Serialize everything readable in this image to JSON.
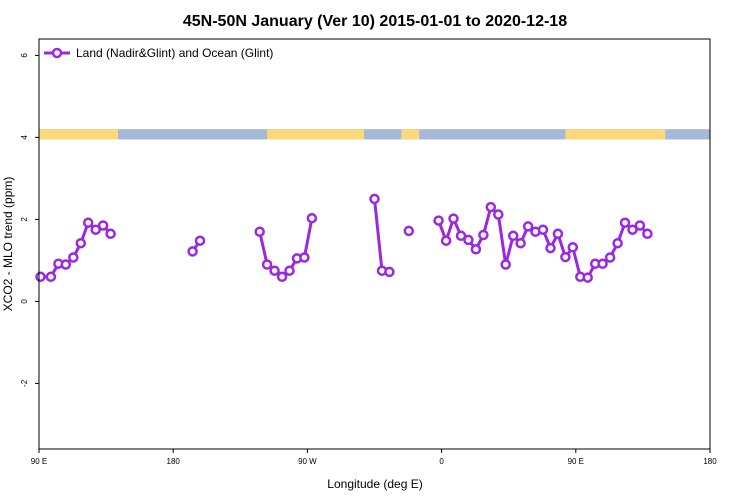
{
  "chart_data": {
    "type": "line",
    "title": "45N-50N January (Ver 10)   2015-01-01 to 2020-12-18",
    "xlabel": "Longitude (deg E)",
    "ylabel": "XCO2 - MLO trend (ppm)",
    "x_axis": {
      "range": [
        90,
        540
      ],
      "ticks": [
        {
          "value": 90,
          "label": "90 E"
        },
        {
          "value": 180,
          "label": "180"
        },
        {
          "value": 270,
          "label": "90 W"
        },
        {
          "value": 360,
          "label": "0"
        },
        {
          "value": 450,
          "label": "90 E"
        },
        {
          "value": 540,
          "label": "180"
        }
      ]
    },
    "y_axis": {
      "range": [
        -3.6,
        6.4
      ],
      "ticks": [
        {
          "value": -2,
          "label": "-2"
        },
        {
          "value": 0,
          "label": "0"
        },
        {
          "value": 2,
          "label": "2"
        },
        {
          "value": 4,
          "label": "4"
        },
        {
          "value": 6,
          "label": "6"
        }
      ]
    },
    "grid": false,
    "legend_position": "top-left",
    "land_ocean_band": {
      "y_range": [
        3.95,
        4.2
      ],
      "land_color": "#fbd87a",
      "ocean_color": "#a5b8d7",
      "land_segments": [
        [
          90,
          143
        ],
        [
          243,
          308
        ],
        [
          333,
          345
        ],
        [
          443,
          510
        ]
      ]
    },
    "series": [
      {
        "name": "Land (Nadir&Glint) and Ocean (Glint)",
        "color": "#9c27e0",
        "segments": [
          [
            [
              91,
              0.6
            ],
            [
              98,
              0.6
            ],
            [
              103,
              0.92
            ],
            [
              108,
              0.9
            ],
            [
              113,
              1.07
            ],
            [
              118,
              1.42
            ],
            [
              123,
              1.92
            ],
            [
              128,
              1.75
            ],
            [
              133,
              1.85
            ],
            [
              138,
              1.65
            ]
          ],
          [
            [
              193,
              1.22
            ],
            [
              198,
              1.48
            ]
          ],
          [
            [
              238,
              1.7
            ],
            [
              243,
              0.9
            ],
            [
              248,
              0.75
            ],
            [
              253,
              0.6
            ],
            [
              258,
              0.75
            ],
            [
              263,
              1.05
            ],
            [
              268,
              1.07
            ],
            [
              273,
              2.03
            ]
          ],
          [
            [
              315,
              2.5
            ],
            [
              320,
              0.75
            ],
            [
              325,
              0.72
            ]
          ],
          [
            [
              338,
              1.72
            ]
          ],
          [
            [
              358,
              1.97
            ],
            [
              363,
              1.48
            ],
            [
              368,
              2.02
            ],
            [
              373,
              1.6
            ],
            [
              378,
              1.5
            ],
            [
              383,
              1.27
            ],
            [
              388,
              1.62
            ],
            [
              393,
              2.3
            ],
            [
              398,
              2.12
            ],
            [
              403,
              0.9
            ],
            [
              408,
              1.6
            ],
            [
              413,
              1.42
            ],
            [
              418,
              1.83
            ],
            [
              423,
              1.7
            ],
            [
              428,
              1.75
            ],
            [
              433,
              1.3
            ],
            [
              438,
              1.65
            ],
            [
              443,
              1.08
            ],
            [
              448,
              1.32
            ],
            [
              453,
              0.6
            ],
            [
              458,
              0.58
            ],
            [
              463,
              0.92
            ],
            [
              468,
              0.92
            ],
            [
              473,
              1.07
            ],
            [
              478,
              1.42
            ],
            [
              483,
              1.92
            ],
            [
              488,
              1.75
            ],
            [
              493,
              1.85
            ],
            [
              498,
              1.65
            ]
          ]
        ]
      }
    ]
  }
}
